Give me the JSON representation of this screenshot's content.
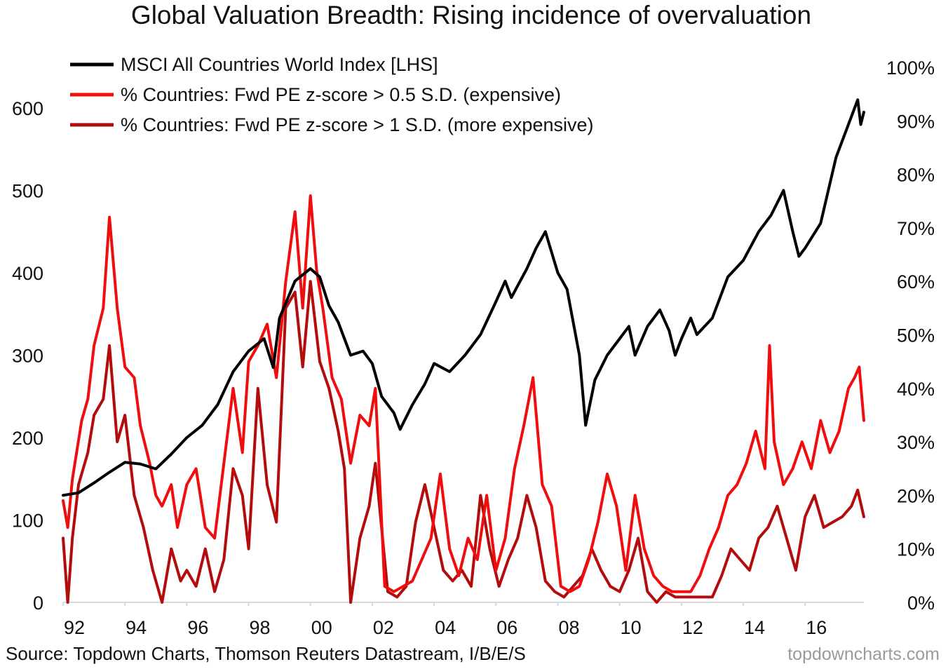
{
  "chart_data": {
    "type": "line",
    "title": "Global Valuation Breadth: Rising incidence of overvaluation",
    "xlabel": "",
    "ylabel_left": "",
    "ylabel_right": "",
    "x_range": [
      1992.0,
      2017.9
    ],
    "x_ticks": [
      1992,
      1994,
      1996,
      1998,
      2000,
      2002,
      2004,
      2006,
      2008,
      2010,
      2012,
      2014,
      2016
    ],
    "x_tick_labels": [
      "92",
      "94",
      "96",
      "98",
      "00",
      "02",
      "04",
      "06",
      "08",
      "10",
      "12",
      "14",
      "16"
    ],
    "ylim_left": [
      0,
      650
    ],
    "y_ticks_left": [
      0,
      100,
      200,
      300,
      400,
      500,
      600
    ],
    "y_tick_labels_left": [
      "0",
      "100",
      "200",
      "300",
      "400",
      "500",
      "600"
    ],
    "ylim_right": [
      0,
      100
    ],
    "y_ticks_right": [
      0,
      10,
      20,
      30,
      40,
      50,
      60,
      70,
      80,
      90,
      100
    ],
    "y_tick_labels_right": [
      "0%",
      "10%",
      "20%",
      "30%",
      "40%",
      "50%",
      "60%",
      "70%",
      "80%",
      "90%",
      "100%"
    ],
    "legend_position": "top-left",
    "series": [
      {
        "name": "MSCI All Countries World Index [LHS]",
        "axis": "left",
        "color": "#000000",
        "x": [
          1992.0,
          1992.5,
          1993.0,
          1993.5,
          1994.0,
          1994.5,
          1995.0,
          1995.5,
          1996.0,
          1996.5,
          1997.0,
          1997.5,
          1998.0,
          1998.5,
          1998.8,
          1999.0,
          1999.5,
          2000.0,
          2000.3,
          2000.6,
          2000.9,
          2001.3,
          2001.7,
          2002.0,
          2002.3,
          2002.7,
          2002.9,
          2003.3,
          2003.7,
          2004.0,
          2004.5,
          2005.0,
          2005.5,
          2006.0,
          2006.3,
          2006.5,
          2007.0,
          2007.3,
          2007.6,
          2008.0,
          2008.3,
          2008.7,
          2008.9,
          2009.2,
          2009.6,
          2010.0,
          2010.3,
          2010.5,
          2010.9,
          2011.3,
          2011.6,
          2011.8,
          2012.0,
          2012.3,
          2012.5,
          2013.0,
          2013.5,
          2014.0,
          2014.5,
          2014.9,
          2015.3,
          2015.6,
          2015.8,
          2016.0,
          2016.5,
          2017.0,
          2017.5,
          2017.7,
          2017.8,
          2017.9
        ],
        "values": [
          130,
          133,
          145,
          158,
          170,
          168,
          162,
          180,
          200,
          215,
          240,
          280,
          305,
          320,
          285,
          345,
          390,
          405,
          395,
          360,
          340,
          300,
          305,
          290,
          250,
          230,
          210,
          240,
          265,
          290,
          280,
          300,
          325,
          365,
          390,
          370,
          405,
          430,
          450,
          400,
          380,
          300,
          215,
          270,
          300,
          320,
          335,
          300,
          335,
          355,
          330,
          300,
          320,
          345,
          325,
          345,
          395,
          415,
          450,
          470,
          500,
          450,
          420,
          430,
          460,
          540,
          590,
          610,
          580,
          595
        ]
      },
      {
        "name": "% Countries: Fwd PE z-score > 0.5 S.D. (expensive)",
        "axis": "right",
        "color": "#f00d0d",
        "x": [
          1992.0,
          1992.15,
          1992.3,
          1992.6,
          1992.8,
          1993.0,
          1993.3,
          1993.5,
          1993.75,
          1994.0,
          1994.3,
          1994.5,
          1994.8,
          1995.0,
          1995.2,
          1995.5,
          1995.7,
          1996.0,
          1996.3,
          1996.6,
          1996.9,
          1997.2,
          1997.5,
          1997.8,
          1998.0,
          1998.3,
          1998.6,
          1998.9,
          1999.2,
          1999.5,
          1999.75,
          2000.0,
          2000.2,
          2000.4,
          2000.7,
          2001.0,
          2001.3,
          2001.6,
          2001.9,
          2002.1,
          2002.4,
          2002.7,
          2003.0,
          2003.3,
          2003.6,
          2003.9,
          2004.2,
          2004.5,
          2004.8,
          2005.1,
          2005.4,
          2005.7,
          2006.0,
          2006.3,
          2006.6,
          2006.9,
          2007.2,
          2007.5,
          2007.8,
          2008.1,
          2008.4,
          2008.7,
          2009.0,
          2009.3,
          2009.6,
          2009.9,
          2010.2,
          2010.5,
          2010.8,
          2011.1,
          2011.4,
          2011.7,
          2012.0,
          2012.3,
          2012.6,
          2012.9,
          2013.2,
          2013.5,
          2013.8,
          2014.1,
          2014.4,
          2014.7,
          2014.85,
          2015.0,
          2015.3,
          2015.6,
          2015.9,
          2016.2,
          2016.5,
          2016.8,
          2017.1,
          2017.4,
          2017.6,
          2017.75,
          2017.9
        ],
        "values": [
          19,
          14,
          23,
          34,
          38,
          48,
          55,
          72,
          55,
          44,
          42,
          33,
          26,
          20,
          18,
          22,
          14,
          22,
          25,
          14,
          12,
          26,
          40,
          28,
          45,
          48,
          52,
          42,
          60,
          73,
          55,
          76,
          62,
          55,
          42,
          38,
          26,
          35,
          33,
          40,
          3,
          2,
          3,
          4,
          8,
          12,
          24,
          10,
          5,
          12,
          8,
          20,
          6,
          12,
          25,
          33,
          42,
          22,
          18,
          3,
          2,
          3,
          8,
          15,
          24,
          18,
          6,
          20,
          10,
          5,
          3,
          2,
          2,
          2,
          5,
          10,
          14,
          20,
          22,
          26,
          32,
          25,
          48,
          30,
          22,
          25,
          30,
          25,
          34,
          28,
          32,
          40,
          42,
          44,
          34
        ]
      },
      {
        "name": "% Countries: Fwd PE z-score > 1 S.D. (more expensive)",
        "axis": "right",
        "color": "#b30c0c",
        "x": [
          1992.0,
          1992.15,
          1992.3,
          1992.5,
          1992.8,
          1993.0,
          1993.3,
          1993.5,
          1993.75,
          1994.0,
          1994.3,
          1994.6,
          1994.9,
          1995.2,
          1995.5,
          1995.8,
          1996.0,
          1996.3,
          1996.6,
          1996.9,
          1997.2,
          1997.5,
          1997.8,
          1998.0,
          1998.3,
          1998.6,
          1998.9,
          1999.2,
          1999.5,
          1999.75,
          2000.0,
          2000.3,
          2000.6,
          2000.9,
          2001.1,
          2001.3,
          2001.6,
          2001.9,
          2002.1,
          2002.5,
          2002.8,
          2003.1,
          2003.4,
          2003.7,
          2004.0,
          2004.3,
          2004.6,
          2004.9,
          2005.2,
          2005.5,
          2005.8,
          2006.1,
          2006.4,
          2006.7,
          2007.0,
          2007.3,
          2007.6,
          2007.9,
          2008.2,
          2008.5,
          2008.8,
          2009.1,
          2009.4,
          2009.7,
          2010.0,
          2010.3,
          2010.6,
          2010.9,
          2011.2,
          2011.5,
          2011.8,
          2012.1,
          2012.4,
          2012.7,
          2013.0,
          2013.3,
          2013.6,
          2013.9,
          2014.2,
          2014.5,
          2014.8,
          2015.1,
          2015.4,
          2015.7,
          2016.0,
          2016.3,
          2016.6,
          2016.9,
          2017.2,
          2017.5,
          2017.7,
          2017.9
        ],
        "values": [
          12,
          0,
          12,
          22,
          28,
          35,
          38,
          48,
          30,
          35,
          20,
          14,
          6,
          0,
          10,
          4,
          6,
          3,
          10,
          2,
          8,
          25,
          20,
          10,
          40,
          22,
          15,
          55,
          58,
          44,
          60,
          45,
          40,
          32,
          25,
          0,
          12,
          18,
          26,
          2,
          1,
          3,
          15,
          22,
          14,
          6,
          4,
          6,
          3,
          20,
          10,
          3,
          8,
          12,
          20,
          14,
          4,
          2,
          1,
          3,
          5,
          10,
          6,
          3,
          2,
          6,
          12,
          2,
          0,
          2,
          1,
          1,
          1,
          1,
          1,
          5,
          10,
          8,
          6,
          12,
          14,
          18,
          12,
          6,
          16,
          20,
          14,
          15,
          16,
          18,
          21,
          16
        ]
      }
    ],
    "source": "Source: Topdown Charts, Thomson Reuters Datastream, I/B/E/S",
    "watermark": "topdowncharts.com"
  }
}
